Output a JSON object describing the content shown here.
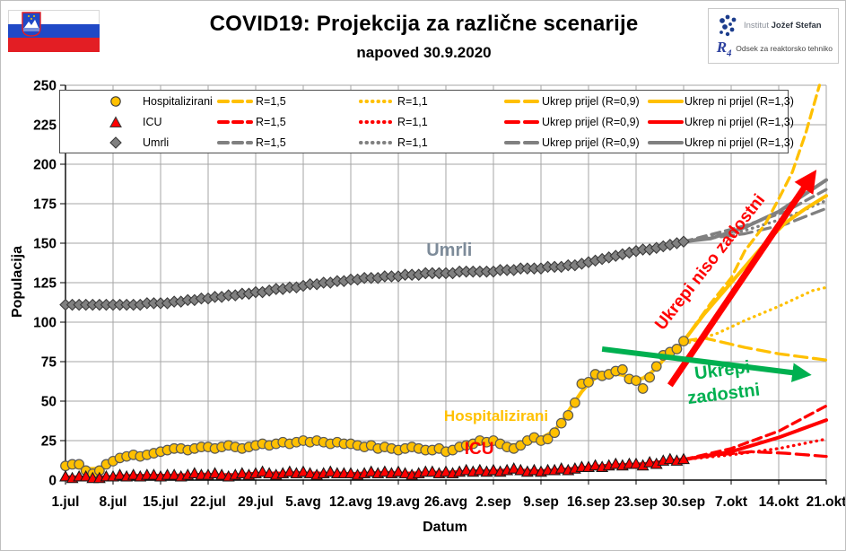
{
  "header": {
    "title": "COVID19: Projekcija za različne scenarije",
    "subtitle": "napoved 30.9.2020",
    "flag": "slovenia",
    "logo": {
      "institute_light": "Institut",
      "institute_bold": "Jožef Stefan",
      "dept_mark": "R",
      "dept_mark_sub": "4",
      "dept_text": "Odsek za reaktorsko tehniko"
    }
  },
  "legend": {
    "series": [
      {
        "name": "Hospitalizirani",
        "marker": "circle",
        "color": "#FFC000"
      },
      {
        "name": "ICU",
        "marker": "triangle",
        "color": "#FF0000"
      },
      {
        "name": "Umrli",
        "marker": "diamond",
        "color": "#808080"
      }
    ],
    "columns": [
      {
        "label": "R=1,5",
        "style": "dashed"
      },
      {
        "label": "R=1,1",
        "style": "dotted"
      },
      {
        "label": "Ukrep prijel (R=0,9)",
        "style": "longdash"
      },
      {
        "label": "Ukrep ni prijel (R=1,3)",
        "style": "solid"
      }
    ]
  },
  "chart_data": {
    "type": "line",
    "title": "COVID19: Projekcija za različne scenarije",
    "subtitle": "napoved 30.9.2020",
    "xlabel": "Datum",
    "ylabel": "Populacija",
    "ylim": [
      0,
      250
    ],
    "ytick_step": 25,
    "x_tick_labels": [
      "1.jul",
      "8.jul",
      "15.jul",
      "22.jul",
      "29.jul",
      "5.avg",
      "12.avg",
      "19.avg",
      "26.avg",
      "2.sep",
      "9.sep",
      "16.sep",
      "23.sep",
      "30.sep",
      "7.okt",
      "14.okt",
      "21.okt"
    ],
    "days_per_tick": 7,
    "total_days": 112,
    "grid": true,
    "colors": {
      "hospitalizirani": "#FFC000",
      "icu": "#FF0000",
      "umrli": "#808080",
      "green_accent": "#00B050",
      "red_accent": "#FF0000",
      "umrli_label": "#7D8B99"
    },
    "actual": {
      "start_label": "1.jul",
      "end_label": "30.sep",
      "hospitalizirani": [
        9,
        10,
        10,
        6,
        4,
        6,
        10,
        12,
        14,
        15,
        16,
        15,
        16,
        17,
        18,
        19,
        20,
        20,
        19,
        20,
        21,
        21,
        20,
        21,
        22,
        21,
        20,
        21,
        22,
        23,
        22,
        23,
        24,
        23,
        24,
        25,
        24,
        25,
        24,
        23,
        24,
        23,
        23,
        22,
        21,
        22,
        20,
        21,
        20,
        19,
        20,
        21,
        20,
        19,
        19,
        20,
        18,
        19,
        21,
        22,
        23,
        25,
        24,
        25,
        23,
        21,
        20,
        22,
        25,
        27,
        25,
        26,
        30,
        36,
        41,
        49,
        61,
        62,
        67,
        66,
        67,
        69,
        70,
        64,
        63,
        58,
        65,
        72,
        79,
        81,
        83,
        88
      ],
      "icu": [
        2,
        1,
        2,
        2,
        1,
        1,
        2,
        2,
        3,
        2,
        3,
        2,
        3,
        3,
        2,
        3,
        3,
        2,
        3,
        4,
        3,
        3,
        4,
        3,
        2,
        3,
        4,
        3,
        4,
        5,
        4,
        3,
        4,
        5,
        4,
        5,
        4,
        3,
        4,
        5,
        4,
        4,
        4,
        3,
        4,
        5,
        4,
        5,
        4,
        5,
        4,
        3,
        4,
        5,
        5,
        4,
        5,
        4,
        5,
        6,
        5,
        6,
        5,
        6,
        5,
        6,
        7,
        6,
        5,
        6,
        5,
        6,
        6,
        7,
        6,
        7,
        8,
        8,
        9,
        8,
        9,
        10,
        9,
        10,
        10,
        9,
        11,
        10,
        12,
        13,
        12,
        13
      ],
      "umrli": [
        111,
        111,
        111,
        111,
        111,
        111,
        111,
        111,
        111,
        111,
        111,
        111,
        112,
        112,
        112,
        112,
        113,
        113,
        114,
        114,
        115,
        115,
        116,
        116,
        117,
        117,
        118,
        118,
        119,
        119,
        120,
        121,
        121,
        122,
        122,
        123,
        124,
        124,
        125,
        125,
        126,
        126,
        127,
        127,
        128,
        128,
        128,
        129,
        129,
        129,
        130,
        130,
        130,
        131,
        131,
        131,
        131,
        131,
        132,
        132,
        132,
        132,
        132,
        132,
        133,
        133,
        133,
        134,
        134,
        134,
        134,
        135,
        135,
        135,
        136,
        136,
        137,
        138,
        139,
        140,
        141,
        142,
        143,
        144,
        145,
        146,
        146,
        147,
        148,
        149,
        150,
        151
      ]
    },
    "projections": {
      "hospitalizirani": {
        "R15": {
          "label": "R=1,5",
          "style": "dashed",
          "points": [
            [
              91,
              88
            ],
            [
              95,
              112
            ],
            [
              98,
              128
            ],
            [
              100,
              145
            ],
            [
              103,
              162
            ],
            [
              105,
              178
            ],
            [
              107,
              195
            ],
            [
              109,
              220
            ],
            [
              111,
              250
            ]
          ]
        },
        "R11": {
          "label": "R=1,1",
          "style": "dotted",
          "points": [
            [
              91,
              86
            ],
            [
              96,
              93
            ],
            [
              100,
              101
            ],
            [
              105,
              110
            ],
            [
              110,
              120
            ],
            [
              112,
              122
            ]
          ]
        },
        "R09": {
          "label": "Ukrep prijel (R=0,9)",
          "style": "longdash",
          "points": [
            [
              91,
              88
            ],
            [
              94,
              90
            ],
            [
              100,
              84
            ],
            [
              105,
              80
            ],
            [
              112,
              76
            ]
          ]
        },
        "R13": {
          "label": "Ukrep ni prijel (R=1,3)",
          "style": "solid",
          "points": [
            [
              91,
              88
            ],
            [
              94,
              105
            ],
            [
              97,
              120
            ],
            [
              100,
              135
            ],
            [
              103,
              150
            ],
            [
              106,
              163
            ],
            [
              109,
              172
            ],
            [
              112,
              180
            ]
          ]
        }
      },
      "icu": {
        "R15": {
          "label": "R=1,5",
          "style": "dashed",
          "points": [
            [
              91,
              13
            ],
            [
              98,
              20
            ],
            [
              105,
              31
            ],
            [
              112,
              47
            ]
          ]
        },
        "R11": {
          "label": "R=1,1",
          "style": "dotted",
          "points": [
            [
              91,
              13
            ],
            [
              98,
              16
            ],
            [
              105,
              20
            ],
            [
              112,
              26
            ]
          ]
        },
        "R09": {
          "label": "Ukrep prijel (R=0,9)",
          "style": "longdash",
          "points": [
            [
              91,
              13
            ],
            [
              96,
              16
            ],
            [
              101,
              18
            ],
            [
              106,
              17
            ],
            [
              112,
              15
            ]
          ]
        },
        "R13": {
          "label": "Ukrep ni prijel (R=1,3)",
          "style": "solid",
          "points": [
            [
              91,
              13
            ],
            [
              98,
              18
            ],
            [
              105,
              27
            ],
            [
              112,
              38
            ]
          ]
        }
      },
      "umrli": {
        "R15": {
          "label": "R=1,5",
          "style": "dashed",
          "points": [
            [
              91,
              151
            ],
            [
              100,
              161
            ],
            [
              106,
              170
            ],
            [
              112,
              184
            ]
          ]
        },
        "R11": {
          "label": "R=1,1",
          "style": "dotted",
          "points": [
            [
              91,
              151
            ],
            [
              100,
              158
            ],
            [
              106,
              166
            ],
            [
              112,
              177
            ]
          ]
        },
        "R09": {
          "label": "Ukrep prijel (R=0,9)",
          "style": "longdash",
          "points": [
            [
              91,
              151
            ],
            [
              100,
              156
            ],
            [
              106,
              162
            ],
            [
              112,
              172
            ]
          ]
        },
        "R13": {
          "label": "Ukrep ni prijel (R=1,3)",
          "style": "solid",
          "points": [
            [
              91,
              151
            ],
            [
              95,
              153
            ],
            [
              100,
              160
            ],
            [
              105,
              170
            ],
            [
              112,
              190
            ]
          ]
        }
      }
    },
    "annotations": [
      {
        "id": "umrli-series-label",
        "text": "Umrli",
        "day": 56.5,
        "value": 142,
        "color": "#7D8B99",
        "size": 20,
        "rotate": 0
      },
      {
        "id": "hospitalizirani-series-label",
        "text": "Hospitalizirani",
        "day": 63.4,
        "value": 37.5,
        "color": "#FFC000",
        "size": 17,
        "rotate": 0
      },
      {
        "id": "icu-series-label",
        "text": "ICU",
        "day": 60.9,
        "value": 16.5,
        "color": "#FF0000",
        "size": 19,
        "rotate": 0
      },
      {
        "id": "ukrepi-niso-zadostni-label",
        "text": "Ukrepi niso zadostni",
        "day": 95.5,
        "value": 136,
        "color": "#FF0000",
        "size": 19,
        "rotate": -52
      },
      {
        "id": "ukrepi-label",
        "text": "Ukrepi",
        "day": 96.8,
        "value": 66,
        "color": "#00B050",
        "size": 20,
        "rotate": -7
      },
      {
        "id": "zadostni-label",
        "text": "zadostni",
        "day": 97.0,
        "value": 51,
        "color": "#00B050",
        "size": 20,
        "rotate": -7
      }
    ],
    "arrows": [
      {
        "id": "red-arrow",
        "from": [
          89,
          60
        ],
        "to": [
          110,
          193
        ],
        "color": "#FF0000",
        "width": 7
      },
      {
        "id": "green-arrow",
        "from": [
          79,
          83
        ],
        "to": [
          109,
          67
        ],
        "color": "#00B050",
        "width": 6
      }
    ]
  }
}
